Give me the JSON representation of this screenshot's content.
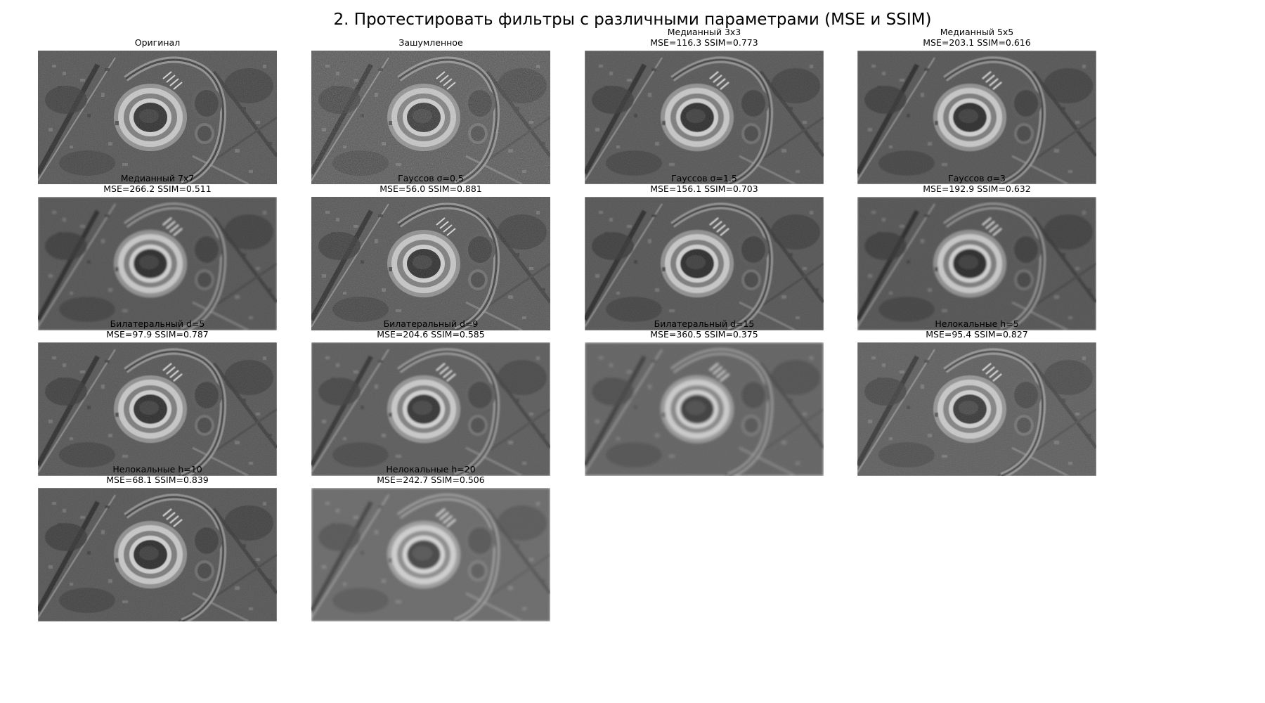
{
  "figure_title": "2. Протестировать фильтры с различными параметрами (MSE и SSIM)",
  "panels": [
    {
      "title": "Оригинал",
      "metrics": "",
      "blur": 0,
      "noise": 0.55,
      "bright": 1.0
    },
    {
      "title": "Зашумленное",
      "metrics": "",
      "blur": 0,
      "noise": 0.9,
      "bright": 1.0
    },
    {
      "title": "Медианный 3x3",
      "metrics": "MSE=116.3 SSIM=0.773",
      "blur": 0.5,
      "noise": 0.45,
      "bright": 1.0
    },
    {
      "title": "Медианный 5x5",
      "metrics": "MSE=203.1 SSIM=0.616",
      "blur": 0.9,
      "noise": 0.35,
      "bright": 1.0
    },
    {
      "title": "Медианный 7x7",
      "metrics": "MSE=266.2 SSIM=0.511",
      "blur": 1.2,
      "noise": 0.3,
      "bright": 1.0
    },
    {
      "title": "Гауссов σ=0.5",
      "metrics": "MSE=56.0 SSIM=0.881",
      "blur": 0.3,
      "noise": 0.6,
      "bright": 1.0
    },
    {
      "title": "Гауссов σ=1.5",
      "metrics": "MSE=156.1 SSIM=0.703",
      "blur": 0.8,
      "noise": 0.35,
      "bright": 1.0
    },
    {
      "title": "Гауссов σ=3",
      "metrics": "MSE=192.9 SSIM=0.632",
      "blur": 1.4,
      "noise": 0.25,
      "bright": 1.0
    },
    {
      "title": "Билатеральный d=5",
      "metrics": "MSE=97.9 SSIM=0.787",
      "blur": 0.5,
      "noise": 0.45,
      "bright": 1.0
    },
    {
      "title": "Билатеральный d=9",
      "metrics": "MSE=204.6 SSIM=0.585",
      "blur": 1.0,
      "noise": 0.3,
      "bright": 0.95
    },
    {
      "title": "Билатеральный d=15",
      "metrics": "MSE=360.5 SSIM=0.375",
      "blur": 1.8,
      "noise": 0.2,
      "bright": 0.9
    },
    {
      "title": "Нелокальные h=5",
      "metrics": "MSE=95.4 SSIM=0.827",
      "blur": 0.4,
      "noise": 0.5,
      "bright": 0.95
    },
    {
      "title": "Нелокальные h=10",
      "metrics": "MSE=68.1 SSIM=0.839",
      "blur": 0.6,
      "noise": 0.4,
      "bright": 1.0
    },
    {
      "title": "Нелокальные h=20",
      "metrics": "MSE=242.7 SSIM=0.506",
      "blur": 1.6,
      "noise": 0.15,
      "bright": 0.85
    }
  ]
}
